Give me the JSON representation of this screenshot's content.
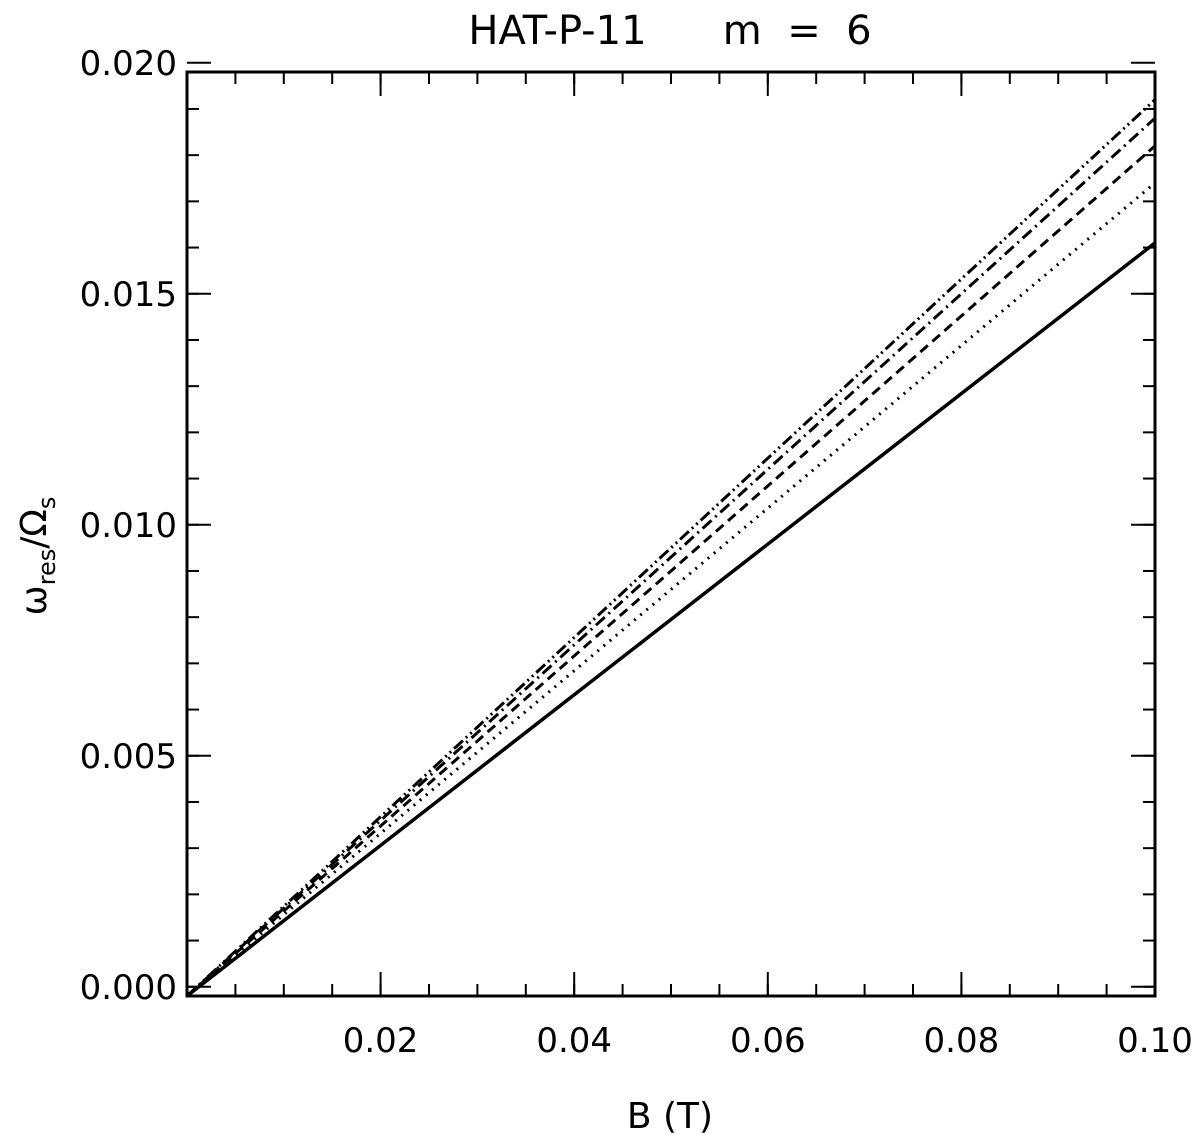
{
  "chart_data": {
    "type": "line",
    "title": "HAT-P-11      m  =  6",
    "xlabel": "B (T)",
    "ylabel_main": "ω",
    "ylabel_sub1": "res",
    "ylabel_slash": "/Ω",
    "ylabel_sub2": "s",
    "xlim": [
      0.0,
      0.1
    ],
    "ylim": [
      -0.0002,
      0.0198
    ],
    "x_ticks": [
      {
        "value": 0.02,
        "label": "0.02"
      },
      {
        "value": 0.04,
        "label": "0.04"
      },
      {
        "value": 0.06,
        "label": "0.06"
      },
      {
        "value": 0.08,
        "label": "0.08"
      },
      {
        "value": 0.1,
        "label": "0.10"
      }
    ],
    "y_ticks": [
      {
        "value": 0.0,
        "label": "0.000"
      },
      {
        "value": 0.005,
        "label": "0.005"
      },
      {
        "value": 0.01,
        "label": "0.010"
      },
      {
        "value": 0.015,
        "label": "0.015"
      },
      {
        "value": 0.02,
        "label": "0.020"
      }
    ],
    "x_minor_step": 0.005,
    "y_minor_step": 0.001,
    "grid": false,
    "series": [
      {
        "style": "solid",
        "x": [
          0.0,
          0.1
        ],
        "y": [
          -0.0002,
          0.0161
        ]
      },
      {
        "style": "dotted",
        "x": [
          0.0,
          0.1
        ],
        "y": [
          -0.0002,
          0.0174
        ]
      },
      {
        "style": "dashed",
        "x": [
          0.0,
          0.1
        ],
        "y": [
          -0.0002,
          0.0182
        ]
      },
      {
        "style": "dash-dot",
        "x": [
          0.0,
          0.1
        ],
        "y": [
          -0.0002,
          0.0188
        ]
      },
      {
        "style": "dash-dot-dot",
        "x": [
          0.0,
          0.1
        ],
        "y": [
          -0.0002,
          0.0192
        ]
      }
    ]
  }
}
